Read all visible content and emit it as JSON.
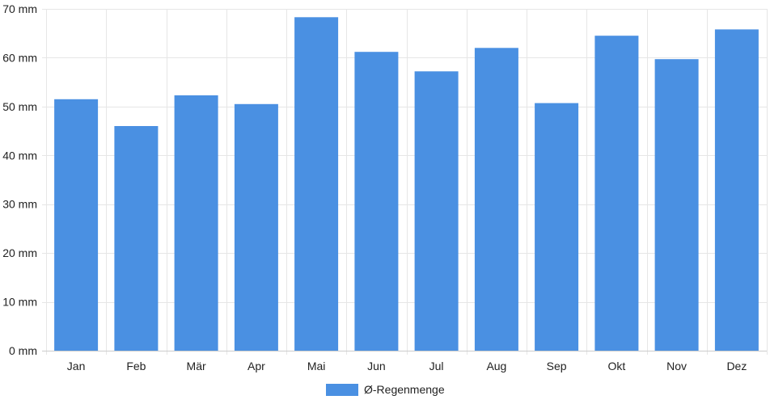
{
  "chart_data": {
    "type": "bar",
    "categories": [
      "Jan",
      "Feb",
      "Mär",
      "Apr",
      "Mai",
      "Jun",
      "Jul",
      "Aug",
      "Sep",
      "Okt",
      "Nov",
      "Dez"
    ],
    "series": [
      {
        "name": "Ø-Regenmenge",
        "color": "#4a90e2",
        "values": [
          51.5,
          46,
          52.3,
          50.5,
          68.3,
          61.2,
          57.2,
          62,
          50.7,
          64.5,
          59.7,
          65.8
        ]
      }
    ],
    "ylim": [
      0,
      70
    ],
    "yticks": [
      0,
      10,
      20,
      30,
      40,
      50,
      60,
      70
    ],
    "y_unit": "mm",
    "grid": true,
    "legend_position": "bottom-center"
  }
}
